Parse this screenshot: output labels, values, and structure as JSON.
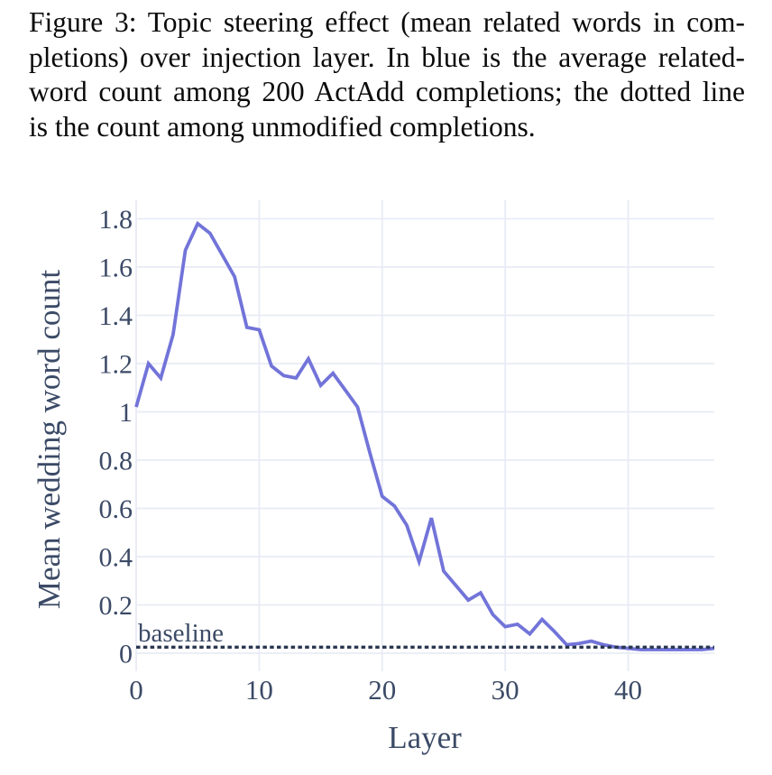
{
  "caption": {
    "lines": [
      "Figure 3: Topic steering effect (mean related words in com-",
      "pletions) over injection layer. In blue is the average related-",
      "word count among 200 ActAdd completions; the dotted line",
      "is the count among unmodified completions."
    ]
  },
  "chart_data": {
    "type": "line",
    "title": "",
    "xlabel": "Layer",
    "ylabel": "Mean wedding word count",
    "baseline_label": "baseline",
    "baseline_value": 0.025,
    "x": [
      0,
      1,
      2,
      3,
      4,
      5,
      6,
      7,
      8,
      9,
      10,
      11,
      12,
      13,
      14,
      15,
      16,
      17,
      18,
      19,
      20,
      21,
      22,
      23,
      24,
      25,
      26,
      27,
      28,
      29,
      30,
      31,
      32,
      33,
      34,
      35,
      36,
      37,
      38,
      39,
      40,
      41,
      42,
      43,
      44,
      45,
      46,
      47
    ],
    "values": [
      1.02,
      1.2,
      1.14,
      1.32,
      1.67,
      1.78,
      1.74,
      1.65,
      1.56,
      1.35,
      1.34,
      1.19,
      1.15,
      1.14,
      1.22,
      1.11,
      1.16,
      1.09,
      1.02,
      0.83,
      0.65,
      0.61,
      0.53,
      0.38,
      0.56,
      0.34,
      0.28,
      0.22,
      0.25,
      0.16,
      0.11,
      0.12,
      0.08,
      0.14,
      0.09,
      0.035,
      0.04,
      0.05,
      0.035,
      0.025,
      0.02,
      0.015,
      0.015,
      0.015,
      0.015,
      0.015,
      0.015,
      0.02
    ],
    "xticks": [
      0,
      10,
      20,
      30,
      40
    ],
    "yticks": [
      0,
      0.2,
      0.4,
      0.6,
      0.8,
      1,
      1.2,
      1.4,
      1.6,
      1.8
    ],
    "xlim": [
      0,
      47
    ],
    "ylim": [
      -0.08,
      1.88
    ],
    "grid": true,
    "legend": "none",
    "colors": {
      "line": "#7274d9",
      "baseline": "#2a3750",
      "grid": "#e8ebf5",
      "text": "#3b4a66"
    }
  }
}
